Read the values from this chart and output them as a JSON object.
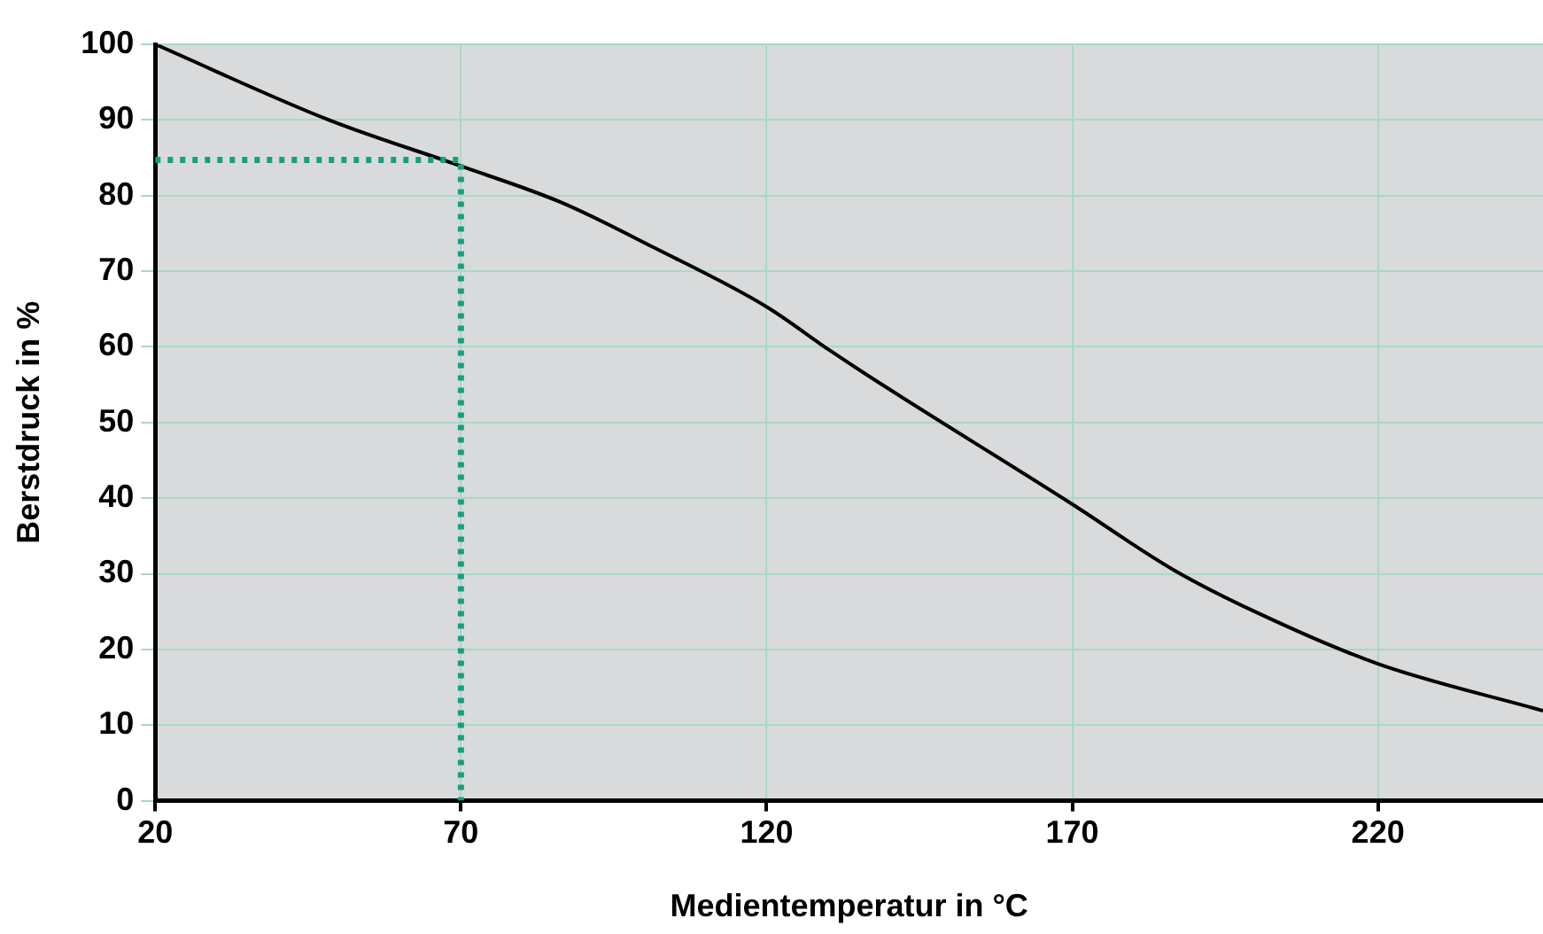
{
  "chart_data": {
    "type": "line",
    "xlabel": "Medientemperatur in °C",
    "ylabel": "Berstdruck in %",
    "xlim": [
      20,
      247
    ],
    "ylim": [
      0,
      100
    ],
    "xticks": [
      20,
      70,
      120,
      170,
      220
    ],
    "yticks": [
      0,
      10,
      20,
      30,
      40,
      50,
      60,
      70,
      80,
      90,
      100
    ],
    "grid": true,
    "legend": false,
    "marker": "none",
    "series": [
      {
        "color": "#000000",
        "line_style": "solid",
        "x": [
          20,
          48.4,
          70,
          86.4,
          101.4,
          120,
          130.4,
          136.4,
          170,
          186.4,
          200.4,
          220,
          247
        ],
        "values": [
          100,
          90,
          83.9,
          79.1,
          73.2,
          65.3,
          59.5,
          56.3,
          39.2,
          30.6,
          24.8,
          18.1,
          11.9
        ]
      },
      {
        "color": "#15a07e",
        "line_style": "dotted",
        "x": [
          20,
          70,
          70
        ],
        "values": [
          84.7,
          84.7,
          0
        ]
      }
    ]
  }
}
